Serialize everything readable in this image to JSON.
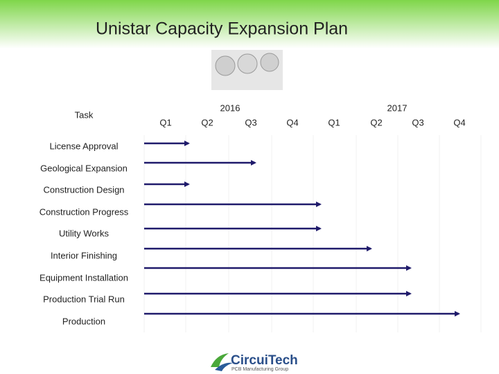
{
  "header": {
    "title": "Unistar Capacity Expansion Plan"
  },
  "table": {
    "task_header": "Task",
    "years": [
      "2016",
      "2017"
    ],
    "quarters": [
      "Q1",
      "Q2",
      "Q3",
      "Q4",
      "Q1",
      "Q2",
      "Q3",
      "Q4"
    ],
    "tasks": [
      "License Approval",
      "Geological Expansion",
      "Construction Design",
      "Construction Progress",
      "Utility Works",
      "Interior Finishing",
      "Equipment Installation",
      "Production Trial Run",
      "Production"
    ]
  },
  "logo": {
    "name": "CircuiTech",
    "tagline": "PCB Manufacturing Group"
  }
}
